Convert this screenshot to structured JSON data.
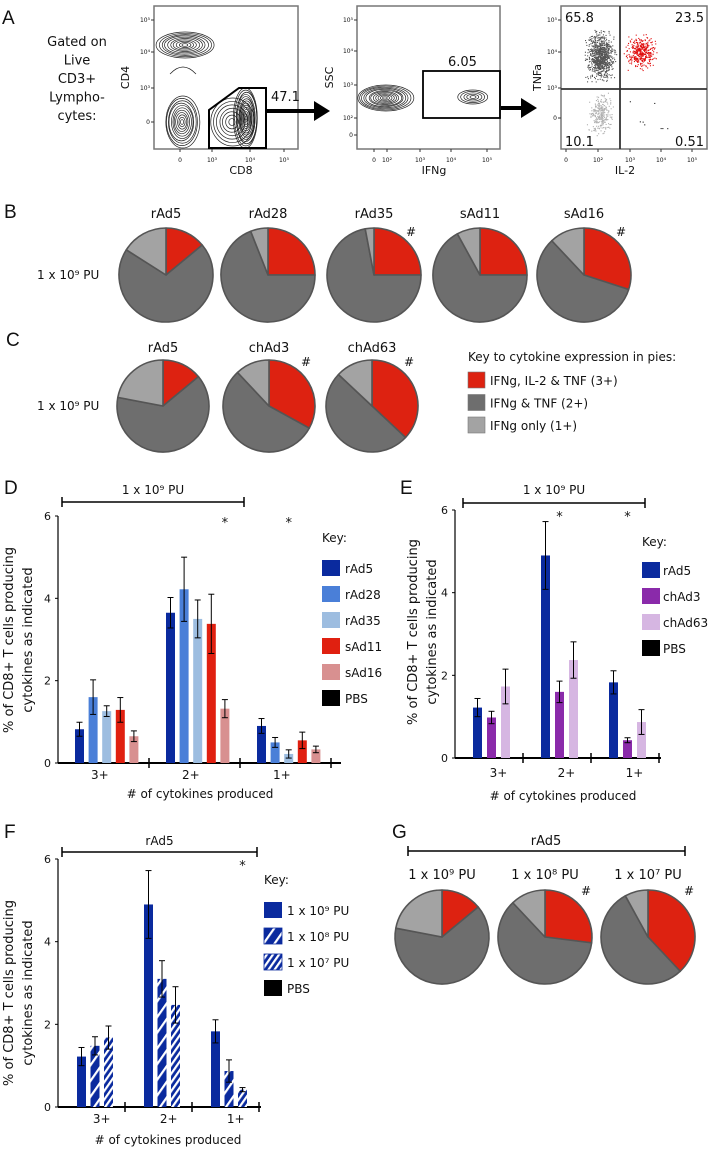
{
  "panel_labels": {
    "a": "A",
    "b": "B",
    "c": "C",
    "d": "D",
    "e": "E",
    "f": "F",
    "g": "G"
  },
  "panel_a": {
    "gating_text": [
      "Gated on",
      "Live",
      "CD3+",
      "Lympho-",
      "cytes:"
    ],
    "plot1": {
      "xlabel": "CD8",
      "ylabel": "CD4",
      "gate_value": "47.1",
      "xticks": [
        "0",
        "10³",
        "10⁴",
        "10⁵"
      ],
      "yticks": [
        "10⁵",
        "10⁴",
        "10³",
        "0"
      ]
    },
    "plot2": {
      "xlabel": "IFNg",
      "ylabel": "SSC",
      "gate_value": "6.05",
      "xticks": [
        "0",
        "10²",
        "10³",
        "10⁴",
        "10⁵"
      ],
      "yticks": [
        "10⁵",
        "10⁴",
        "10³",
        "10²",
        "0"
      ]
    },
    "plot3": {
      "xlabel": "IL-2",
      "ylabel": "TNFa",
      "xticks": [
        "0",
        "10²",
        "10³",
        "10⁴",
        "10⁵"
      ],
      "yticks": [
        "10⁵",
        "10⁴",
        "10³",
        "0"
      ],
      "quadrants": {
        "top_left": "65.8",
        "top_right": "23.5",
        "bottom_left": "10.1",
        "bottom_right": "0.51"
      },
      "colors": {
        "top_left": "#555555",
        "top_right": "#e01010",
        "bottom_left": "#b0b0b0",
        "bottom_right": "#222222"
      }
    }
  },
  "pie_key": {
    "title": "Key to cytokine expression in pies:",
    "items": [
      {
        "label": "IFNg, IL-2 & TNF (3+)",
        "color": "#dd2211"
      },
      {
        "label": "IFNg & TNF (2+)",
        "color": "#6e6e6e"
      },
      {
        "label": "IFNg only (1+)",
        "color": "#a3a3a3"
      }
    ]
  },
  "chart_data": [
    {
      "type": "pie",
      "panel": "B",
      "row_label": "1 x 10⁹ PU",
      "categories": [
        "3+",
        "2+",
        "1+"
      ],
      "significance_mark": "#",
      "pies": [
        {
          "title": "rAd5",
          "values": [
            14,
            70,
            16
          ],
          "significant": false
        },
        {
          "title": "rAd28",
          "values": [
            25,
            69,
            6
          ],
          "significant": false
        },
        {
          "title": "rAd35",
          "values": [
            25,
            72,
            3
          ],
          "significant": true
        },
        {
          "title": "sAd11",
          "values": [
            25,
            67,
            8
          ],
          "significant": false
        },
        {
          "title": "sAd16",
          "values": [
            30,
            58,
            12
          ],
          "significant": true
        }
      ]
    },
    {
      "type": "pie",
      "panel": "C",
      "row_label": "1 x 10⁹ PU",
      "categories": [
        "3+",
        "2+",
        "1+"
      ],
      "significance_mark": "#",
      "pies": [
        {
          "title": "rAd5",
          "values": [
            14,
            64,
            22
          ],
          "significant": false
        },
        {
          "title": "chAd3",
          "values": [
            33,
            55,
            12
          ],
          "significant": true
        },
        {
          "title": "chAd63",
          "values": [
            37,
            50,
            13
          ],
          "significant": true
        }
      ]
    },
    {
      "type": "bar",
      "panel": "D",
      "title": "1 x 10⁹ PU",
      "xlabel": "# of cytokines produced",
      "ylabel": [
        "% of CD8+ T cells producing",
        "cytokines as indicated"
      ],
      "ylim": [
        0,
        6
      ],
      "yticks": [
        "0",
        "2",
        "4",
        "6"
      ],
      "categories": [
        "3+",
        "2+",
        "1+"
      ],
      "legend_title": "Key:",
      "series": [
        {
          "name": "rAd5",
          "color": "#0a2a9e",
          "fill": "solid",
          "values": [
            0.82,
            3.65,
            0.9
          ],
          "errors": [
            0.17,
            0.37,
            0.18
          ]
        },
        {
          "name": "rAd28",
          "color": "#4a7fd8",
          "fill": "solid",
          "values": [
            1.6,
            4.22,
            0.5
          ],
          "errors": [
            0.42,
            0.78,
            0.12
          ]
        },
        {
          "name": "rAd35",
          "color": "#9dbde0",
          "fill": "solid",
          "values": [
            1.26,
            3.5,
            0.22
          ],
          "errors": [
            0.13,
            0.46,
            0.1
          ]
        },
        {
          "name": "sAd11",
          "color": "#e02010",
          "fill": "solid",
          "values": [
            1.29,
            3.38,
            0.55
          ],
          "errors": [
            0.3,
            0.72,
            0.2
          ]
        },
        {
          "name": "sAd16",
          "color": "#d89090",
          "fill": "solid",
          "values": [
            0.65,
            1.32,
            0.33
          ],
          "errors": [
            0.13,
            0.22,
            0.08
          ]
        },
        {
          "name": "PBS",
          "color": "#000000",
          "fill": "solid",
          "values": [
            0.02,
            0.02,
            0.02
          ],
          "errors": [
            0,
            0,
            0
          ]
        }
      ],
      "significance": [
        {
          "mark": "*",
          "category": "2+",
          "series": "sAd16",
          "color": "#d89090"
        },
        {
          "mark": "*",
          "category": "1+",
          "series": "rAd35",
          "color": "#9dbde0"
        }
      ]
    },
    {
      "type": "bar",
      "panel": "E",
      "title": "1 x 10⁹ PU",
      "xlabel": "# of cytokines produced",
      "ylabel": [
        "% of CD8+ T cells producing",
        "cytokines as indicated"
      ],
      "ylim": [
        0,
        6
      ],
      "yticks": [
        "0",
        "2",
        "4",
        "6"
      ],
      "categories": [
        "3+",
        "2+",
        "1+"
      ],
      "legend_title": "Key:",
      "series": [
        {
          "name": "rAd5",
          "color": "#0a2a9e",
          "fill": "solid",
          "values": [
            1.22,
            4.9,
            1.83
          ],
          "errors": [
            0.22,
            0.82,
            0.28
          ]
        },
        {
          "name": "chAd3",
          "color": "#8a2aaa",
          "fill": "solid",
          "values": [
            0.98,
            1.6,
            0.43
          ],
          "errors": [
            0.15,
            0.26,
            0.06
          ]
        },
        {
          "name": "chAd63",
          "color": "#d6b6e2",
          "fill": "solid",
          "values": [
            1.73,
            2.37,
            0.87
          ],
          "errors": [
            0.42,
            0.44,
            0.3
          ]
        },
        {
          "name": "PBS",
          "color": "#000000",
          "fill": "solid",
          "values": [
            0.01,
            0.01,
            0.02
          ],
          "errors": [
            0,
            0,
            0
          ]
        }
      ],
      "significance": [
        {
          "mark": "*",
          "category": "2+",
          "series": "chAd3",
          "color": "#8a2aaa"
        },
        {
          "mark": "*",
          "category": "1+",
          "series": "chAd3",
          "color": "#8a2aaa"
        }
      ]
    },
    {
      "type": "bar",
      "panel": "F",
      "title": "rAd5",
      "xlabel": "# of cytokines produced",
      "ylabel": [
        "% of CD8+ T cells producing",
        "cytokines as indicated"
      ],
      "ylim": [
        0,
        6
      ],
      "yticks": [
        "0",
        "2",
        "4",
        "6"
      ],
      "categories": [
        "3+",
        "2+",
        "1+"
      ],
      "legend_title": "Key:",
      "series": [
        {
          "name": "1 x 10⁹ PU",
          "color": "#0a2a9e",
          "fill": "solid",
          "values": [
            1.22,
            4.9,
            1.83
          ],
          "errors": [
            0.22,
            0.82,
            0.28
          ]
        },
        {
          "name": "1 x 10⁸ PU",
          "color": "#0a2a9e",
          "fill": "sparse-hatch",
          "values": [
            1.48,
            3.1,
            0.87
          ],
          "errors": [
            0.22,
            0.44,
            0.27
          ]
        },
        {
          "name": "1 x 10⁷ PU",
          "color": "#0a2a9e",
          "fill": "dense-hatch",
          "values": [
            1.68,
            2.47,
            0.42
          ],
          "errors": [
            0.28,
            0.44,
            0.05
          ]
        },
        {
          "name": "PBS",
          "color": "#000000",
          "fill": "solid",
          "values": [
            0.01,
            0.01,
            0.02
          ],
          "errors": [
            0,
            0,
            0
          ]
        }
      ],
      "significance": [
        {
          "mark": "*",
          "category": "1+",
          "series": "1 x 10⁷ PU",
          "color": "#2a2ab0"
        }
      ]
    },
    {
      "type": "pie",
      "panel": "G",
      "group_label": "rAd5",
      "categories": [
        "3+",
        "2+",
        "1+"
      ],
      "significance_mark": "#",
      "pies": [
        {
          "title": "1 x 10⁹ PU",
          "values": [
            14,
            64,
            22
          ],
          "significant": false
        },
        {
          "title": "1 x 10⁸ PU",
          "values": [
            27,
            61,
            12
          ],
          "significant": true
        },
        {
          "title": "1 x 10⁷ PU",
          "values": [
            38,
            54,
            8
          ],
          "significant": true
        }
      ]
    }
  ]
}
